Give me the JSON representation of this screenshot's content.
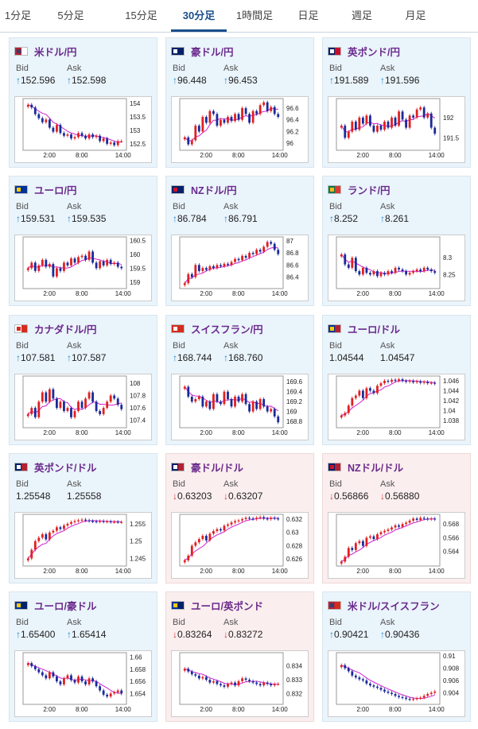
{
  "tabs": [
    {
      "label": "1分足",
      "active": false
    },
    {
      "label": "5分足",
      "active": false
    },
    {
      "label": "15分足",
      "active": false
    },
    {
      "label": "30分足",
      "active": true
    },
    {
      "label": "1時間足",
      "active": false
    },
    {
      "label": "日足",
      "active": false
    },
    {
      "label": "週足",
      "active": false
    },
    {
      "label": "月足",
      "active": false
    }
  ],
  "colors": {
    "accent": "#1a4e8a",
    "pair": "#6a2a8c",
    "up_arrow": "#1e88c8",
    "down_arrow": "#d23a3a",
    "bull": "#e02020",
    "bear": "#1a2a9a",
    "ma": "#d020d0"
  },
  "labels": {
    "bid": "Bid",
    "ask": "Ask"
  },
  "chart_data": [
    {
      "type": "candlestick",
      "pair": "米ドル/円",
      "direction": "up",
      "bid": "152.596",
      "ask": "152.598",
      "flag": "us-flag",
      "yticks": [
        "154",
        "153.5",
        "153",
        "152.5"
      ],
      "ylim": [
        152.35,
        154.15
      ],
      "xticks": [
        "2:00",
        "8:00",
        "14:00"
      ],
      "close": [
        153.95,
        153.85,
        153.6,
        153.45,
        153.3,
        153.4,
        153.1,
        152.95,
        153.2,
        152.9,
        152.8,
        152.85,
        152.7,
        152.75,
        152.9,
        152.8,
        152.7,
        152.85,
        152.75,
        152.8,
        152.6,
        152.7,
        152.5,
        152.55,
        152.45,
        152.6,
        152.6
      ]
    },
    {
      "type": "candlestick",
      "pair": "豪ドル/円",
      "direction": "up",
      "bid": "96.448",
      "ask": "96.453",
      "flag": "au-flag",
      "yticks": [
        "96.6",
        "96.4",
        "96.2",
        "96"
      ],
      "ylim": [
        95.92,
        96.75
      ],
      "xticks": [
        "2:00",
        "8:00",
        "14:00"
      ],
      "close": [
        96.1,
        95.98,
        96.05,
        96.3,
        96.2,
        96.45,
        96.35,
        96.55,
        96.5,
        96.3,
        96.4,
        96.35,
        96.45,
        96.38,
        96.5,
        96.4,
        96.6,
        96.5,
        96.35,
        96.55,
        96.5,
        96.65,
        96.7,
        96.55,
        96.62,
        96.5,
        96.45
      ]
    },
    {
      "type": "candlestick",
      "pair": "英ポンド/円",
      "direction": "up",
      "bid": "191.589",
      "ask": "191.596",
      "flag": "uk-flag",
      "yticks": [
        "192",
        "191.5"
      ],
      "ylim": [
        191.25,
        192.45
      ],
      "xticks": [
        "2:00",
        "8:00",
        "14:00"
      ],
      "close": [
        191.8,
        191.5,
        191.65,
        191.9,
        191.7,
        192.0,
        191.85,
        192.05,
        191.8,
        191.65,
        191.8,
        191.7,
        191.9,
        191.75,
        192.0,
        191.8,
        192.15,
        191.95,
        191.75,
        192.05,
        192.0,
        192.2,
        192.25,
        192.0,
        192.1,
        191.75,
        191.6
      ]
    },
    {
      "type": "candlestick",
      "pair": "ユーロ/円",
      "direction": "up",
      "bid": "159.531",
      "ask": "159.535",
      "flag": "eu-flag",
      "yticks": [
        "160.5",
        "160",
        "159.5",
        "159"
      ],
      "ylim": [
        158.85,
        160.6
      ],
      "xticks": [
        "2:00",
        "8:00",
        "14:00"
      ],
      "close": [
        159.5,
        159.7,
        159.4,
        159.6,
        159.8,
        159.55,
        159.65,
        159.2,
        159.5,
        159.4,
        159.7,
        159.6,
        159.85,
        159.7,
        159.9,
        159.95,
        159.8,
        160.1,
        159.7,
        159.5,
        159.75,
        159.6,
        159.8,
        159.65,
        159.7,
        159.55,
        159.5
      ]
    },
    {
      "type": "candlestick",
      "pair": "NZドル/円",
      "direction": "up",
      "bid": "86.784",
      "ask": "86.791",
      "flag": "nz-flag",
      "yticks": [
        "87",
        "86.8",
        "86.6",
        "86.4"
      ],
      "ylim": [
        86.25,
        87.05
      ],
      "xticks": [
        "2:00",
        "8:00",
        "14:00"
      ],
      "close": [
        86.3,
        86.45,
        86.4,
        86.6,
        86.5,
        86.55,
        86.52,
        86.58,
        86.55,
        86.6,
        86.58,
        86.62,
        86.6,
        86.65,
        86.7,
        86.68,
        86.75,
        86.72,
        86.8,
        86.78,
        86.85,
        86.82,
        86.9,
        86.98,
        86.95,
        86.85,
        86.78
      ]
    },
    {
      "type": "candlestick",
      "pair": "ランド/円",
      "direction": "up",
      "bid": "8.252",
      "ask": "8.261",
      "flag": "za-flag",
      "yticks": [
        "8.3",
        "8.25"
      ],
      "ylim": [
        8.215,
        8.36
      ],
      "xticks": [
        "2:00",
        "8:00",
        "14:00"
      ],
      "close": [
        8.31,
        8.28,
        8.27,
        8.3,
        8.26,
        8.25,
        8.27,
        8.255,
        8.25,
        8.26,
        8.245,
        8.255,
        8.25,
        8.26,
        8.255,
        8.27,
        8.265,
        8.26,
        8.25,
        8.255,
        8.26,
        8.265,
        8.26,
        8.27,
        8.265,
        8.26,
        8.255
      ]
    },
    {
      "type": "candlestick",
      "pair": "カナダドル/円",
      "direction": "up",
      "bid": "107.581",
      "ask": "107.587",
      "flag": "ca-flag",
      "yticks": [
        "108",
        "107.8",
        "107.6",
        "107.4"
      ],
      "ylim": [
        107.32,
        108.1
      ],
      "xticks": [
        "2:00",
        "8:00",
        "14:00"
      ],
      "close": [
        107.5,
        107.6,
        107.45,
        107.7,
        107.85,
        107.7,
        107.9,
        107.75,
        107.6,
        107.7,
        107.55,
        107.6,
        107.45,
        107.55,
        107.7,
        107.6,
        107.75,
        107.85,
        107.7,
        107.55,
        107.5,
        107.6,
        107.7,
        107.8,
        107.75,
        107.65,
        107.58
      ]
    },
    {
      "type": "candlestick",
      "pair": "スイスフラン/円",
      "direction": "up",
      "bid": "168.744",
      "ask": "168.760",
      "flag": "ch-flag",
      "yticks": [
        "169.6",
        "169.4",
        "169.2",
        "169",
        "168.8"
      ],
      "ylim": [
        168.72,
        169.7
      ],
      "xticks": [
        "2:00",
        "8:00",
        "14:00"
      ],
      "close": [
        169.5,
        169.3,
        169.2,
        169.25,
        169.3,
        169.1,
        169.2,
        169.05,
        169.35,
        169.2,
        169.15,
        169.4,
        169.25,
        169.1,
        169.3,
        169.2,
        169.35,
        169.15,
        169.0,
        169.2,
        169.05,
        169.25,
        169.1,
        169.0,
        169.05,
        168.9,
        168.78
      ]
    },
    {
      "type": "candlestick",
      "pair": "ユーロ/ドル",
      "direction": "none",
      "bid": "1.04544",
      "ask": "1.04547",
      "flag": "eu-us-flag",
      "yticks": [
        "1.046",
        "1.044",
        "1.042",
        "1.04",
        "1.038"
      ],
      "ylim": [
        1.037,
        1.0468
      ],
      "xticks": [
        "2:00",
        "8:00",
        "14:00"
      ],
      "close": [
        1.039,
        1.0395,
        1.041,
        1.0425,
        1.043,
        1.044,
        1.0425,
        1.0445,
        1.044,
        1.0435,
        1.045,
        1.0455,
        1.046,
        1.0458,
        1.0462,
        1.046,
        1.0463,
        1.046,
        1.0458,
        1.046,
        1.0457,
        1.0459,
        1.0456,
        1.0458,
        1.0455,
        1.0456,
        1.0454
      ]
    },
    {
      "type": "candlestick",
      "pair": "英ポンド/ドル",
      "direction": "none",
      "bid": "1.25548",
      "ask": "1.25558",
      "flag": "uk-us-flag",
      "yticks": [
        "1.255",
        "1.25",
        "1.245"
      ],
      "ylim": [
        1.2435,
        1.2575
      ],
      "xticks": [
        "2:00",
        "8:00",
        "14:00"
      ],
      "close": [
        1.245,
        1.2475,
        1.25,
        1.251,
        1.252,
        1.2505,
        1.2525,
        1.253,
        1.254,
        1.2535,
        1.2545,
        1.255,
        1.2555,
        1.2558,
        1.256,
        1.2562,
        1.256,
        1.2558,
        1.2557,
        1.2556,
        1.2558,
        1.2556,
        1.2557,
        1.2555,
        1.2556,
        1.2555,
        1.2555
      ]
    },
    {
      "type": "candlestick",
      "pair": "豪ドル/ドル",
      "direction": "down",
      "bid": "0.63203",
      "ask": "0.63207",
      "flag": "au-us-flag",
      "yticks": [
        "0.632",
        "0.63",
        "0.628",
        "0.626"
      ],
      "ylim": [
        0.6253,
        0.6326
      ],
      "xticks": [
        "2:00",
        "8:00",
        "14:00"
      ],
      "close": [
        0.6258,
        0.6265,
        0.628,
        0.6285,
        0.629,
        0.6295,
        0.6288,
        0.6298,
        0.6302,
        0.6305,
        0.6303,
        0.631,
        0.6312,
        0.6315,
        0.6317,
        0.6318,
        0.632,
        0.6322,
        0.6321,
        0.632,
        0.6322,
        0.6323,
        0.6321,
        0.632,
        0.6322,
        0.6321,
        0.632
      ]
    },
    {
      "type": "candlestick",
      "pair": "NZドル/ドル",
      "direction": "down",
      "bid": "0.56866",
      "ask": "0.56880",
      "flag": "nz-us-flag",
      "yticks": [
        "0.568",
        "0.566",
        "0.564"
      ],
      "ylim": [
        0.5622,
        0.5693
      ],
      "xticks": [
        "2:00",
        "8:00",
        "14:00"
      ],
      "close": [
        0.5625,
        0.5632,
        0.5645,
        0.5642,
        0.5652,
        0.5655,
        0.5648,
        0.566,
        0.5662,
        0.5658,
        0.5665,
        0.5668,
        0.567,
        0.5672,
        0.5675,
        0.5678,
        0.5676,
        0.568,
        0.5682,
        0.5685,
        0.5688,
        0.5686,
        0.5689,
        0.5688,
        0.5687,
        0.5688,
        0.5687
      ]
    },
    {
      "type": "candlestick",
      "pair": "ユーロ/豪ドル",
      "direction": "up",
      "bid": "1.65400",
      "ask": "1.65414",
      "flag": "eu-au-flag",
      "yticks": [
        "1.66",
        "1.658",
        "1.656",
        "1.654"
      ],
      "ylim": [
        1.6526,
        1.6606
      ],
      "xticks": [
        "2:00",
        "8:00",
        "14:00"
      ],
      "close": [
        1.659,
        1.6585,
        1.658,
        1.6575,
        1.657,
        1.6565,
        1.6575,
        1.6568,
        1.656,
        1.6555,
        1.6565,
        1.657,
        1.6562,
        1.6558,
        1.6568,
        1.656,
        1.6555,
        1.6565,
        1.656,
        1.6552,
        1.6545,
        1.6538,
        1.6535,
        1.654,
        1.6542,
        1.6545,
        1.654
      ]
    },
    {
      "type": "candlestick",
      "pair": "ユーロ/英ポンド",
      "direction": "down",
      "bid": "0.83264",
      "ask": "0.83272",
      "flag": "eu-uk-flag",
      "yticks": [
        "0.834",
        "0.833",
        "0.832"
      ],
      "ylim": [
        0.8314,
        0.8349
      ],
      "xticks": [
        "2:00",
        "8:00",
        "14:00"
      ],
      "close": [
        0.8338,
        0.8336,
        0.8334,
        0.8333,
        0.8331,
        0.8332,
        0.833,
        0.8328,
        0.8329,
        0.8327,
        0.8326,
        0.8325,
        0.8327,
        0.8328,
        0.8326,
        0.8329,
        0.8331,
        0.833,
        0.8329,
        0.8328,
        0.8327,
        0.8326,
        0.8328,
        0.8327,
        0.8326,
        0.8327,
        0.8327
      ]
    },
    {
      "type": "candlestick",
      "pair": "米ドル/スイスフラン",
      "direction": "up",
      "bid": "0.90421",
      "ask": "0.90436",
      "flag": "us-ch-flag",
      "yticks": [
        "0.91",
        "0.908",
        "0.906",
        "0.904"
      ],
      "ylim": [
        0.9025,
        0.9104
      ],
      "xticks": [
        "2:00",
        "8:00",
        "14:00"
      ],
      "close": [
        0.9085,
        0.908,
        0.9075,
        0.9068,
        0.9065,
        0.9062,
        0.906,
        0.9055,
        0.9052,
        0.905,
        0.9048,
        0.9045,
        0.9042,
        0.904,
        0.9038,
        0.9035,
        0.9033,
        0.9032,
        0.903,
        0.9029,
        0.903,
        0.9031,
        0.9032,
        0.9035,
        0.9038,
        0.904,
        0.9042
      ]
    }
  ]
}
